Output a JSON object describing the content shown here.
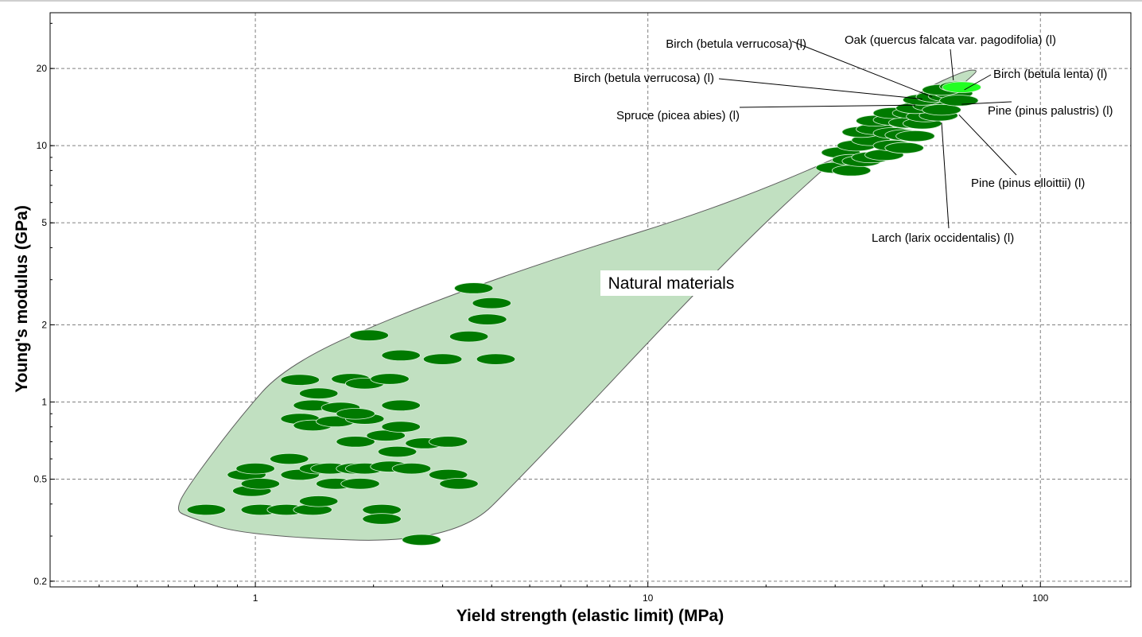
{
  "chart_data": {
    "type": "scatter",
    "xlabel": "Yield strength (elastic limit) (MPa)",
    "ylabel": "Young's modulus (GPa)",
    "x_scale": "log",
    "y_scale": "log",
    "xlim": [
      0.3,
      170
    ],
    "ylim": [
      0.19,
      33
    ],
    "x_ticks": [
      {
        "value": 1,
        "label": "1"
      },
      {
        "value": 10,
        "label": "10"
      },
      {
        "value": 100,
        "label": "100"
      }
    ],
    "y_ticks": [
      {
        "value": 0.2,
        "label": "0.2"
      },
      {
        "value": 0.5,
        "label": "0.5"
      },
      {
        "value": 1,
        "label": "1"
      },
      {
        "value": 2,
        "label": "2"
      },
      {
        "value": 5,
        "label": "5"
      },
      {
        "value": 10,
        "label": "10"
      },
      {
        "value": 20,
        "label": "20"
      }
    ],
    "grid": true,
    "region": {
      "label": "Natural materials",
      "color": "#c1e0c1",
      "outline": [
        [
          0.66,
          0.36
        ],
        [
          0.63,
          0.38
        ],
        [
          0.66,
          0.45
        ],
        [
          0.9,
          0.85
        ],
        [
          1.2,
          1.4
        ],
        [
          2.5,
          2.3
        ],
        [
          6,
          3.7
        ],
        [
          15,
          5.7
        ],
        [
          35,
          9.8
        ],
        [
          55,
          14.5
        ],
        [
          68,
          19
        ],
        [
          69,
          19.8
        ],
        [
          64,
          19.6
        ],
        [
          50,
          16.5
        ],
        [
          40,
          12.5
        ],
        [
          28,
          8.2
        ],
        [
          15,
          3.3
        ],
        [
          5,
          0.55
        ],
        [
          3.2,
          0.28
        ],
        [
          0.95,
          0.3
        ]
      ]
    },
    "series": [
      {
        "color": "#007a00",
        "rx_factor": 1.12,
        "ry_factor": 1.05,
        "points": [
          [
            0.75,
            0.38
          ],
          [
            1.03,
            0.38
          ],
          [
            1.2,
            0.38
          ],
          [
            1.4,
            0.38
          ],
          [
            1.45,
            0.41
          ],
          [
            2.1,
            0.38
          ],
          [
            2.1,
            0.35
          ],
          [
            2.65,
            0.29
          ],
          [
            0.95,
            0.52
          ],
          [
            0.98,
            0.45
          ],
          [
            1.03,
            0.48
          ],
          [
            1.0,
            0.55
          ],
          [
            1.22,
            0.6
          ],
          [
            1.3,
            0.52
          ],
          [
            1.45,
            0.55
          ],
          [
            1.55,
            0.55
          ],
          [
            1.6,
            0.48
          ],
          [
            1.8,
            0.55
          ],
          [
            1.85,
            0.48
          ],
          [
            1.9,
            0.55
          ],
          [
            2.2,
            0.56
          ],
          [
            2.5,
            0.55
          ],
          [
            3.1,
            0.52
          ],
          [
            3.3,
            0.48
          ],
          [
            1.8,
            0.7
          ],
          [
            2.15,
            0.74
          ],
          [
            2.3,
            0.64
          ],
          [
            2.7,
            0.69
          ],
          [
            3.1,
            0.7
          ],
          [
            1.3,
            0.86
          ],
          [
            1.4,
            0.81
          ],
          [
            1.6,
            0.84
          ],
          [
            1.9,
            0.86
          ],
          [
            2.35,
            0.8
          ],
          [
            1.4,
            0.97
          ],
          [
            1.65,
            0.95
          ],
          [
            1.8,
            0.9
          ],
          [
            2.35,
            0.97
          ],
          [
            1.3,
            1.22
          ],
          [
            1.45,
            1.08
          ],
          [
            1.75,
            1.23
          ],
          [
            1.9,
            1.18
          ],
          [
            2.2,
            1.23
          ],
          [
            2.35,
            1.52
          ],
          [
            3.0,
            1.47
          ],
          [
            4.1,
            1.47
          ],
          [
            1.95,
            1.82
          ],
          [
            3.5,
            1.8
          ],
          [
            3.9,
            2.1
          ],
          [
            4.0,
            2.43
          ],
          [
            3.6,
            2.78
          ],
          [
            30,
            8.2
          ],
          [
            33,
            8.0
          ],
          [
            31,
            9.4
          ],
          [
            33,
            8.8
          ],
          [
            35,
            8.7
          ],
          [
            37,
            9.0
          ],
          [
            40,
            9.2
          ],
          [
            34,
            10.0
          ],
          [
            37,
            10.5
          ],
          [
            42,
            10.0
          ],
          [
            45,
            9.8
          ],
          [
            35,
            11.3
          ],
          [
            38,
            11.6
          ],
          [
            42,
            11.2
          ],
          [
            45,
            11.0
          ],
          [
            48,
            10.9
          ],
          [
            38,
            12.5
          ],
          [
            42,
            12.6
          ],
          [
            46,
            12.3
          ],
          [
            50,
            12.2
          ],
          [
            42,
            13.4
          ],
          [
            47,
            13.4
          ],
          [
            51,
            13.0
          ],
          [
            55,
            13.1
          ],
          [
            48,
            14.0
          ],
          [
            53,
            14.3
          ],
          [
            56,
            13.8
          ],
          [
            50,
            15.1
          ],
          [
            54,
            15.5
          ],
          [
            58,
            15.6
          ],
          [
            60,
            16.0
          ],
          [
            56,
            16.5
          ],
          [
            62,
            15.0
          ],
          [
            62,
            17.0
          ]
        ]
      },
      {
        "color": "#22ff22",
        "rx_factor": 1.12,
        "ry_factor": 1.05,
        "points": [
          [
            63,
            16.9
          ]
        ]
      }
    ],
    "annotations": [
      {
        "text": "Birch (betula verrucosa) (l)",
        "point": [
          53,
          15.5
        ],
        "anchor": "right"
      },
      {
        "text": "Birch (betula verrucosa) (l)",
        "point": [
          50,
          15.2
        ],
        "anchor": "right"
      },
      {
        "text": "Spruce (picea abies) (l)",
        "point": [
          48,
          14.4
        ],
        "anchor": "right"
      },
      {
        "text": "Oak (quercus falcata var. pagodifolia) (l)",
        "point": [
          60,
          18.0
        ],
        "anchor": "center"
      },
      {
        "text": "Birch (betula lenta) (l)",
        "point": [
          64,
          16.5
        ],
        "anchor": "left"
      },
      {
        "text": "Pine (pinus palustris) (l)",
        "point": [
          63,
          14.5
        ],
        "anchor": "left"
      },
      {
        "text": "Pine (pinus elloittii) (l)",
        "point": [
          62,
          13.2
        ],
        "anchor": "left"
      },
      {
        "text": "Larch (larix occidentalis) (l)",
        "point": [
          56,
          12.3
        ],
        "anchor": "left"
      }
    ]
  }
}
